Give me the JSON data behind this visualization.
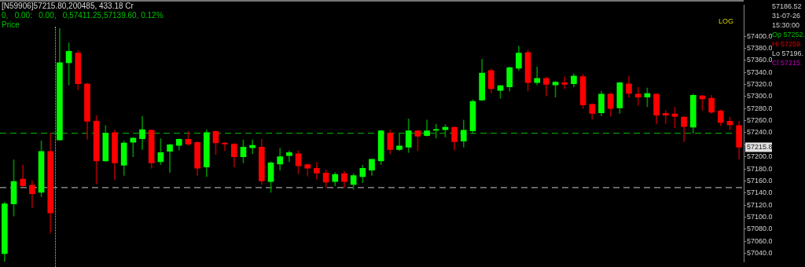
{
  "chart_data": {
    "type": "candlestick",
    "title": "[N59906]57215.80,200485, 433.18 Cr",
    "subtitle": "0,   0.00:   0.00,   0,57411.25,57139.60, 0.12%",
    "ylabel": "Price",
    "categories": [
      null,
      null,
      null,
      null,
      null,
      null,
      null,
      null,
      null,
      null,
      null,
      null,
      null,
      null,
      null,
      null,
      null,
      null,
      null,
      null,
      null,
      null,
      null,
      null,
      null,
      null,
      null,
      null,
      null,
      null,
      null,
      null,
      null,
      null,
      null,
      null,
      null,
      null,
      null,
      null,
      null,
      null,
      null,
      null,
      null,
      null,
      null,
      null,
      null,
      null,
      null,
      null,
      null,
      null,
      null,
      null,
      null,
      null,
      null,
      null,
      null,
      null,
      null,
      null,
      null,
      null,
      null,
      null,
      null,
      null,
      null,
      null,
      null,
      null,
      null,
      null,
      null,
      null,
      null,
      null,
      null
    ],
    "ohlc": [
      [
        57040,
        57125,
        57027,
        57122
      ],
      [
        57122,
        57195,
        57102,
        57159
      ],
      [
        57163,
        57186,
        57151,
        57152
      ],
      [
        57153,
        57160,
        57115,
        57139
      ],
      [
        57141,
        57226,
        57134,
        57209
      ],
      [
        57209,
        57239,
        57074,
        57107
      ],
      [
        57228,
        57413,
        57227,
        57356
      ],
      [
        57356,
        57389,
        57319,
        57375
      ],
      [
        57372,
        57376,
        57311,
        57321
      ],
      [
        57321,
        57322,
        57229,
        57259
      ],
      [
        57259,
        57268,
        57155,
        57193
      ],
      [
        57193,
        57252,
        57192,
        57239
      ],
      [
        57240,
        57244,
        57162,
        57190
      ],
      [
        57186,
        57226,
        57169,
        57223
      ],
      [
        57224,
        57232,
        57200,
        57231
      ],
      [
        57230,
        57267,
        57212,
        57245
      ],
      [
        57244,
        57245,
        57181,
        57190
      ],
      [
        57192,
        57230,
        57187,
        57207
      ],
      [
        57209,
        57221,
        57174,
        57220
      ],
      [
        57219,
        57230,
        57211,
        57229
      ],
      [
        57229,
        57242,
        57219,
        57221
      ],
      [
        57224,
        57225,
        57169,
        57181
      ],
      [
        57183,
        57245,
        57167,
        57240
      ],
      [
        57242,
        57243,
        57204,
        57223
      ],
      [
        57223,
        57224,
        57210,
        57221
      ],
      [
        57221,
        57222,
        57183,
        57200
      ],
      [
        57200,
        57228,
        57190,
        57216
      ],
      [
        57215,
        57228,
        57205,
        57219
      ],
      [
        57216,
        57229,
        57154,
        57160
      ],
      [
        57159,
        57192,
        57141,
        57190
      ],
      [
        57188,
        57214,
        57178,
        57200
      ],
      [
        57202,
        57210,
        57192,
        57207
      ],
      [
        57205,
        57210,
        57172,
        57185
      ],
      [
        57187,
        57188,
        57168,
        57181
      ],
      [
        57181,
        57191,
        57163,
        57173
      ],
      [
        57173,
        57178,
        57149,
        57158
      ],
      [
        57159,
        57174,
        57152,
        57171
      ],
      [
        57172,
        57176,
        57149,
        57159
      ],
      [
        57154,
        57172,
        57146,
        57169
      ],
      [
        57167,
        57186,
        57157,
        57181
      ],
      [
        57178,
        57196,
        57169,
        57196
      ],
      [
        57193,
        57244,
        57187,
        57243
      ],
      [
        57239,
        57244,
        57205,
        57212
      ],
      [
        57212,
        57238,
        57210,
        57218
      ],
      [
        57216,
        57263,
        57207,
        57243
      ],
      [
        57243,
        57244,
        57210,
        57234
      ],
      [
        57235,
        57261,
        57234,
        57243
      ],
      [
        57244,
        57254,
        57231,
        57245
      ],
      [
        57245,
        57253,
        57233,
        57249
      ],
      [
        57249,
        57250,
        57211,
        57225
      ],
      [
        57226,
        57261,
        57216,
        57244
      ],
      [
        57243,
        57295,
        57238,
        57292
      ],
      [
        57294,
        57362,
        57293,
        57339
      ],
      [
        57343,
        57346,
        57306,
        57313
      ],
      [
        57310,
        57319,
        57297,
        57318
      ],
      [
        57316,
        57349,
        57309,
        57348
      ],
      [
        57347,
        57384,
        57343,
        57372
      ],
      [
        57373,
        57377,
        57309,
        57323
      ],
      [
        57323,
        57349,
        57319,
        57330
      ],
      [
        57330,
        57332,
        57301,
        57320
      ],
      [
        57319,
        57325,
        57299,
        57324
      ],
      [
        57323,
        57333,
        57313,
        57320
      ],
      [
        57321,
        57338,
        57316,
        57334
      ],
      [
        57333,
        57337,
        57280,
        57286
      ],
      [
        57287,
        57288,
        57262,
        57272
      ],
      [
        57273,
        57309,
        57268,
        57304
      ],
      [
        57304,
        57306,
        57267,
        57280
      ],
      [
        57281,
        57324,
        57272,
        57323
      ],
      [
        57321,
        57334,
        57299,
        57305
      ],
      [
        57304,
        57315,
        57285,
        57299
      ],
      [
        57299,
        57314,
        57283,
        57305
      ],
      [
        57304,
        57305,
        57255,
        57269
      ],
      [
        57272,
        57277,
        57255,
        57269
      ],
      [
        57271,
        57282,
        57248,
        57267
      ],
      [
        57266,
        57267,
        57225,
        57250
      ],
      [
        57249,
        57304,
        57239,
        57302
      ],
      [
        57301,
        57302,
        57277,
        57296
      ],
      [
        57297,
        57302,
        57272,
        57274
      ],
      [
        57276,
        57278,
        57252,
        57257
      ],
      [
        57259,
        57266,
        57245,
        57253
      ],
      [
        57252,
        57259,
        57196,
        57215.8
      ]
    ],
    "ylim": [
      57026,
      57452
    ],
    "yticks": [
      {
        "value": 57040,
        "label": "57040.0"
      },
      {
        "value": 57060,
        "label": "57060.0"
      },
      {
        "value": 57080,
        "label": "57080.0"
      },
      {
        "value": 57100,
        "label": "57100.0"
      },
      {
        "value": 57120,
        "label": "57120.0"
      },
      {
        "value": 57140,
        "label": "57140.0"
      },
      {
        "value": 57160,
        "label": "57160.0"
      },
      {
        "value": 57180,
        "label": "57180.0"
      },
      {
        "value": 57200,
        "label": "57200.0"
      },
      {
        "value": 57220,
        "label": null
      },
      {
        "value": 57240,
        "label": "57240.0"
      },
      {
        "value": 57260,
        "label": "57260.0"
      },
      {
        "value": 57280,
        "label": "57280.0"
      },
      {
        "value": 57300,
        "label": "57300.0"
      },
      {
        "value": 57320,
        "label": "57320.0"
      },
      {
        "value": 57340,
        "label": "57340.0"
      },
      {
        "value": 57360,
        "label": "57360.0"
      },
      {
        "value": 57380,
        "label": "57380.0"
      },
      {
        "value": 57400,
        "label": "57400.0"
      }
    ],
    "log": true,
    "grid": false,
    "legend": false,
    "tick_labels": "y",
    "ref_lines": [
      {
        "axis": "y",
        "value": 57239,
        "color": "#00a000",
        "line_style": "dashed"
      },
      {
        "axis": "y",
        "value": 57149,
        "color": "#a0a0a0",
        "line_style": "dashed"
      }
    ],
    "annotations": [
      "LOG",
      {
        "text": "57215.8",
        "y": 57215.8
      },
      "57186.52",
      "31-07-26",
      "15:30:00",
      "Op 57252.",
      "Hi 57259.",
      "Lo 57196.",
      "Cl 57215."
    ]
  }
}
